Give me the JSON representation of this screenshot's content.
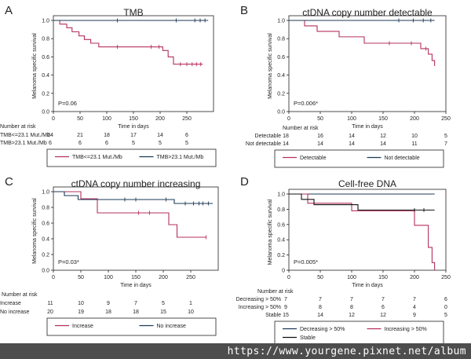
{
  "watermark": "https://www.yourgene.pixnet.net/album",
  "colors": {
    "red": "#b5305e",
    "blue": "#1d3a55",
    "black": "#111111",
    "frame": "#222222"
  },
  "shared": {
    "ylabel": "Melanoma specific survival",
    "xlabel": "Time in days",
    "risk_title": "Number at risk"
  },
  "chart_data": [
    {
      "letter": "A",
      "type": "line",
      "title": "TMB",
      "xlim": [
        0,
        300
      ],
      "ylim": [
        0,
        1
      ],
      "yticks": [
        0.0,
        0.2,
        0.4,
        0.6,
        0.8,
        1.0
      ],
      "ytick_labels": [
        "0.0",
        "0.2",
        "0.4",
        "0.6",
        "0.8",
        "1.0"
      ],
      "xticks": [
        0,
        50,
        100,
        150,
        200,
        250
      ],
      "xtick_labels": [
        "0",
        "50",
        "100",
        "150",
        "200",
        "250"
      ],
      "pvalue": "P=0.06",
      "series": [
        {
          "name": "TMB<=23.1 Mut./Mb",
          "color": "#b5305e",
          "x": [
            0,
            12,
            25,
            35,
            48,
            58,
            70,
            85,
            100,
            120,
            205,
            215,
            225,
            280
          ],
          "y": [
            1.0,
            0.96,
            0.92,
            0.875,
            0.83,
            0.79,
            0.75,
            0.71,
            0.71,
            0.71,
            0.67,
            0.6,
            0.52,
            0.52
          ],
          "censor": [
            120,
            183,
            198,
            238,
            250,
            260,
            268,
            276
          ]
        },
        {
          "name": "TMB>23.1 Mut./Mb",
          "color": "#1d3a55",
          "x": [
            0,
            290
          ],
          "y": [
            1.0,
            1.0
          ],
          "censor": [
            120,
            230,
            265,
            275,
            284
          ]
        }
      ],
      "risk": {
        "times": [
          0,
          50,
          100,
          150,
          200,
          250
        ],
        "rows": [
          {
            "label": "TMB<=23.1 Mut./Mb",
            "values": [
              "24",
              "21",
              "18",
              "17",
              "14",
              "6"
            ]
          },
          {
            "label": "TMB>23.1 Mut./Mb",
            "values": [
              "6",
              "6",
              "6",
              "5",
              "5",
              "5"
            ]
          }
        ]
      },
      "legend": [
        "TMB<=23.1 Mut./Mb",
        "TMB>23.1 Mut./Mb"
      ]
    },
    {
      "letter": "B",
      "type": "line",
      "title": "ctDNA copy number detectable",
      "xlim": [
        0,
        250
      ],
      "ylim": [
        0,
        1
      ],
      "yticks": [
        0.0,
        0.2,
        0.4,
        0.6,
        0.8,
        1.0
      ],
      "ytick_labels": [
        "0.0",
        "0.2",
        "0.4",
        "0.6",
        "0.8",
        "1.0"
      ],
      "xticks": [
        0,
        50,
        100,
        150,
        200,
        250
      ],
      "xtick_labels": [
        "0",
        "50",
        "100",
        "150",
        "200",
        "250"
      ],
      "pvalue": "P=0.006*",
      "series": [
        {
          "name": "Detectable",
          "color": "#b5305e",
          "x": [
            0,
            25,
            45,
            80,
            120,
            180,
            210,
            222,
            228,
            232
          ],
          "y": [
            1.0,
            0.94,
            0.88,
            0.82,
            0.75,
            0.75,
            0.69,
            0.63,
            0.56,
            0.5
          ],
          "censor": [
            160,
            195,
            218
          ]
        },
        {
          "name": "Not detectable",
          "color": "#1d3a55",
          "x": [
            0,
            232
          ],
          "y": [
            1.0,
            1.0
          ],
          "censor": [
            175,
            198,
            214,
            226
          ]
        }
      ],
      "risk": {
        "times": [
          0,
          50,
          100,
          150,
          200,
          250
        ],
        "rows": [
          {
            "label": "Detectable",
            "values": [
              "18",
              "16",
              "14",
              "12",
              "10",
              "5"
            ]
          },
          {
            "label": "Not detectable",
            "values": [
              "14",
              "14",
              "14",
              "14",
              "11",
              "7"
            ]
          }
        ]
      },
      "legend": [
        "Detectable",
        "Not detectable"
      ]
    },
    {
      "letter": "C",
      "type": "line",
      "title": "ctDNA copy number increasing",
      "xlim": [
        0,
        300
      ],
      "ylim": [
        0,
        1
      ],
      "yticks": [
        0.0,
        0.2,
        0.4,
        0.6,
        0.8,
        1.0
      ],
      "ytick_labels": [
        "0.0",
        "0.2",
        "0.4",
        "0.6",
        "0.8",
        "1.0"
      ],
      "xticks": [
        0,
        50,
        100,
        150,
        200,
        250
      ],
      "xtick_labels": [
        "0",
        "50",
        "100",
        "150",
        "200",
        "250"
      ],
      "pvalue": "P=0.03*",
      "series": [
        {
          "name": "Increase",
          "color": "#b5305e",
          "x": [
            0,
            50,
            80,
            210,
            225,
            278
          ],
          "y": [
            1.0,
            0.91,
            0.73,
            0.58,
            0.42,
            0.42
          ],
          "censor": [
            155,
            175,
            278
          ]
        },
        {
          "name": "No increase",
          "color": "#1d3a55",
          "x": [
            0,
            20,
            45,
            220,
            290
          ],
          "y": [
            1.0,
            0.95,
            0.9,
            0.85,
            0.85
          ],
          "censor": [
            130,
            150,
            205,
            240,
            255,
            265,
            272,
            282
          ]
        }
      ],
      "risk": {
        "times": [
          0,
          50,
          100,
          150,
          200,
          250
        ],
        "rows": [
          {
            "label": "Increase",
            "values": [
              "11",
              "10",
              "9",
              "7",
              "5",
              "1"
            ]
          },
          {
            "label": "No increase",
            "values": [
              "20",
              "19",
              "18",
              "18",
              "15",
              "10"
            ]
          }
        ]
      },
      "legend": [
        "Increase",
        "No increase"
      ]
    },
    {
      "letter": "D",
      "type": "line",
      "title": "Cell-free DNA",
      "xlim": [
        0,
        250
      ],
      "ylim": [
        0,
        1
      ],
      "yticks": [
        0,
        0.2,
        0.4,
        0.6,
        0.8,
        1.0
      ],
      "ytick_labels": [
        "0",
        "0.2",
        "0.4",
        "0.6",
        "0.8",
        "1.0"
      ],
      "xticks": [
        0,
        50,
        100,
        150,
        200,
        250
      ],
      "xtick_labels": [
        "0",
        "50",
        "100",
        "150",
        "200",
        "250"
      ],
      "pvalue": "P=0.005*",
      "series": [
        {
          "name": "Decreasing > 50%",
          "color": "#1d3a55",
          "x": [
            0,
            232
          ],
          "y": [
            1.0,
            1.0
          ],
          "censor": []
        },
        {
          "name": "Increasing > 50%",
          "color": "#b5305e",
          "x": [
            0,
            30,
            100,
            200,
            222,
            228,
            232
          ],
          "y": [
            1.0,
            0.88,
            0.78,
            0.59,
            0.3,
            0.1,
            0.0
          ],
          "censor": []
        },
        {
          "name": "Stable",
          "color": "#111111",
          "x": [
            0,
            20,
            40,
            110,
            232
          ],
          "y": [
            1.0,
            0.93,
            0.86,
            0.79,
            0.79
          ],
          "censor": [
            200,
            215
          ]
        }
      ],
      "risk": {
        "times": [
          0,
          50,
          100,
          150,
          200,
          250
        ],
        "rows": [
          {
            "label": "Decreasing > 50%",
            "values": [
              "7",
              "7",
              "7",
              "7",
              "7",
              "6"
            ]
          },
          {
            "label": "Increasing > 50%",
            "values": [
              "9",
              "8",
              "8",
              "6",
              "4",
              "0"
            ]
          },
          {
            "label": "Stable",
            "values": [
              "15",
              "14",
              "12",
              "12",
              "9",
              "5"
            ]
          }
        ]
      },
      "legend": [
        "Decreasing > 50%",
        "Increasing > 50%",
        "Stable"
      ]
    }
  ]
}
